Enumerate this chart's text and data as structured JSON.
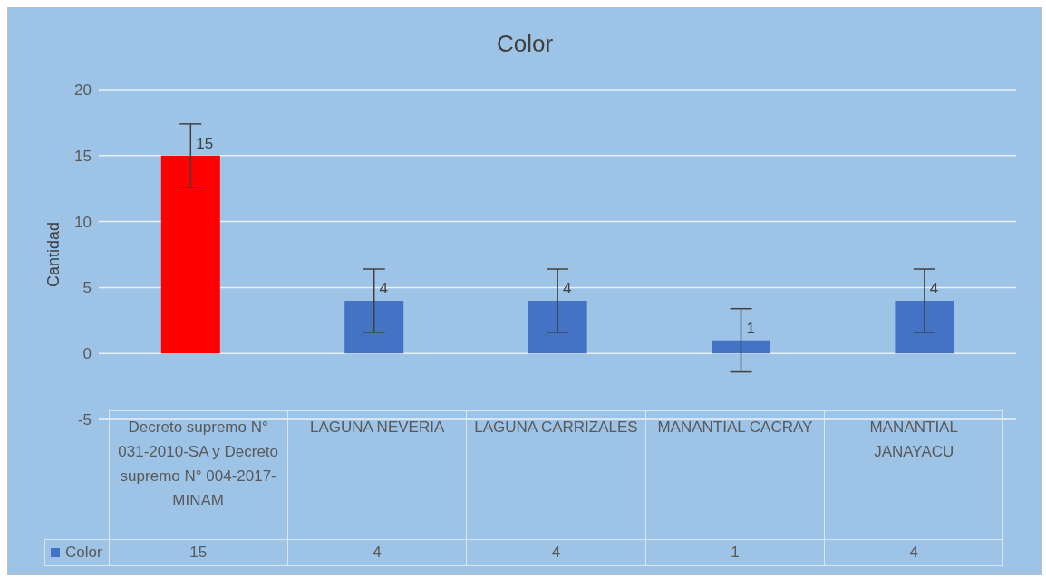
{
  "chart_data": {
    "type": "bar",
    "title": "Color",
    "ylabel": "Cantidad",
    "categories": [
      "Decreto supremo N° 031-2010-SA y Decreto supremo N° 004-2017-MINAM",
      "LAGUNA NEVERIA",
      "LAGUNA CARRIZALES",
      "MANANTIAL CACRAY",
      "MANANTIAL JANAYACU"
    ],
    "series": [
      {
        "name": "Color",
        "values": [
          15,
          4,
          4,
          1,
          4
        ],
        "colors": [
          "#ff0000",
          "#4472c4",
          "#4472c4",
          "#4472c4",
          "#4472c4"
        ],
        "errors": [
          2.4,
          2.4,
          2.4,
          2.4,
          2.4
        ]
      }
    ],
    "annotations": [
      {
        "text": "15",
        "x": "Decreto supremo N° 031-2010-SA y Decreto supremo N° 004-2017-MINAM",
        "y": 15
      },
      {
        "text": "4",
        "x": "LAGUNA NEVERIA",
        "y": 4
      },
      {
        "text": "4",
        "x": "LAGUNA CARRIZALES",
        "y": 4
      },
      {
        "text": "1",
        "x": "MANANTIAL CACRAY",
        "y": 1
      },
      {
        "text": "4",
        "x": "MANANTIAL JANAYACU",
        "y": 4
      }
    ],
    "ylim": [
      -5,
      20
    ],
    "yticks": [
      -5,
      0,
      5,
      10,
      15,
      20
    ],
    "grid": "y",
    "legend": "bottom",
    "data_labels": true
  }
}
